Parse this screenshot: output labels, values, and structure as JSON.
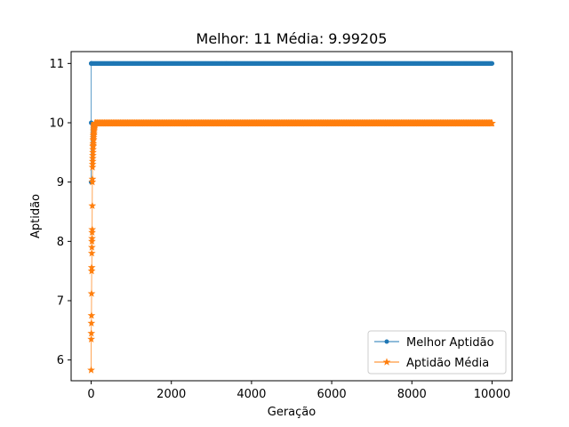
{
  "chart_data": {
    "type": "line",
    "title": "Melhor: 11 Média: 9.99205",
    "xlabel": "Geração",
    "ylabel": "Aptidão",
    "xlim": [
      -500,
      10500
    ],
    "ylim": [
      5.65,
      11.2
    ],
    "xticks": [
      0,
      2000,
      4000,
      6000,
      8000,
      10000
    ],
    "yticks": [
      6,
      7,
      8,
      9,
      10,
      11
    ],
    "legend_position": "lower-right",
    "grid": false,
    "series": [
      {
        "name": "Melhor Aptidão",
        "color": "#1f77b4",
        "marker": "circle",
        "early_x": [
          0,
          1,
          2,
          3,
          4,
          5
        ],
        "early_y": [
          9.0,
          10.0,
          11.0,
          11.0,
          11.0,
          11.0
        ],
        "plateau_value": 11,
        "plateau_from": 5,
        "plateau_to": 10000
      },
      {
        "name": "Aptidão Média",
        "color": "#ff7f0e",
        "marker": "star",
        "early_x": [
          0,
          2,
          4,
          6,
          8,
          10,
          12,
          14,
          16,
          18,
          20,
          22,
          24,
          26,
          28,
          30,
          32,
          34,
          36,
          38,
          40,
          42,
          44,
          46,
          48,
          50,
          52,
          54,
          56,
          58,
          60,
          62,
          64,
          66,
          68,
          70,
          72,
          74,
          76,
          78,
          80,
          82,
          84,
          86,
          88,
          90,
          92,
          94,
          96,
          98,
          100
        ],
        "early_y": [
          5.83,
          6.35,
          6.45,
          6.62,
          6.75,
          7.12,
          7.5,
          7.56,
          7.8,
          7.9,
          8.0,
          8.05,
          8.15,
          8.2,
          8.6,
          9.0,
          9.05,
          9.25,
          9.3,
          9.35,
          9.4,
          9.45,
          9.5,
          9.55,
          9.6,
          9.62,
          9.65,
          9.7,
          9.72,
          9.75,
          9.78,
          9.8,
          9.82,
          9.85,
          9.87,
          9.89,
          9.9,
          9.92,
          9.93,
          9.94,
          9.95,
          9.96,
          9.96,
          9.97,
          9.97,
          9.98,
          9.98,
          9.99,
          9.99,
          9.99,
          9.99
        ],
        "plateau_value": 9.99205,
        "plateau_from": 100,
        "plateau_to": 10000
      }
    ]
  }
}
